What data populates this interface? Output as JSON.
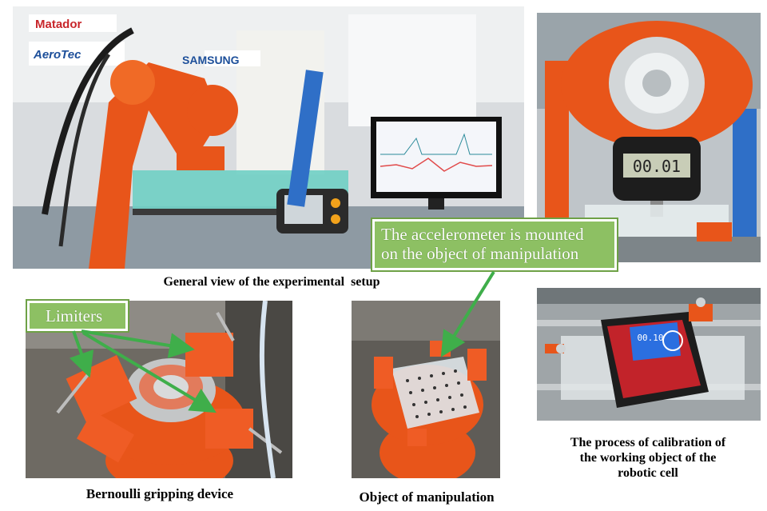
{
  "captions": {
    "general_view": "General view of the experimental  setup",
    "bernoulli": "Bernoulli gripping device",
    "object": "Object of manipulation",
    "calibration_line1": "The process of calibration of",
    "calibration_line2": "the working object of the",
    "calibration_line3": "robotic cell"
  },
  "callouts": {
    "accelerometer_line1": "The accelerometer is mounted",
    "accelerometer_line2": "on the object of manipulation",
    "limiters": "Limiters"
  },
  "photo_text": {
    "matador": "Matador",
    "aerotec": "AeroTec",
    "samsung": "SAMSUNG",
    "gauge_reading": "00.01",
    "level_reading": "00.10"
  },
  "colors": {
    "robot_orange": "#e8551a",
    "callout_green": "#8dc063",
    "arrow_green": "#3fae4a"
  }
}
